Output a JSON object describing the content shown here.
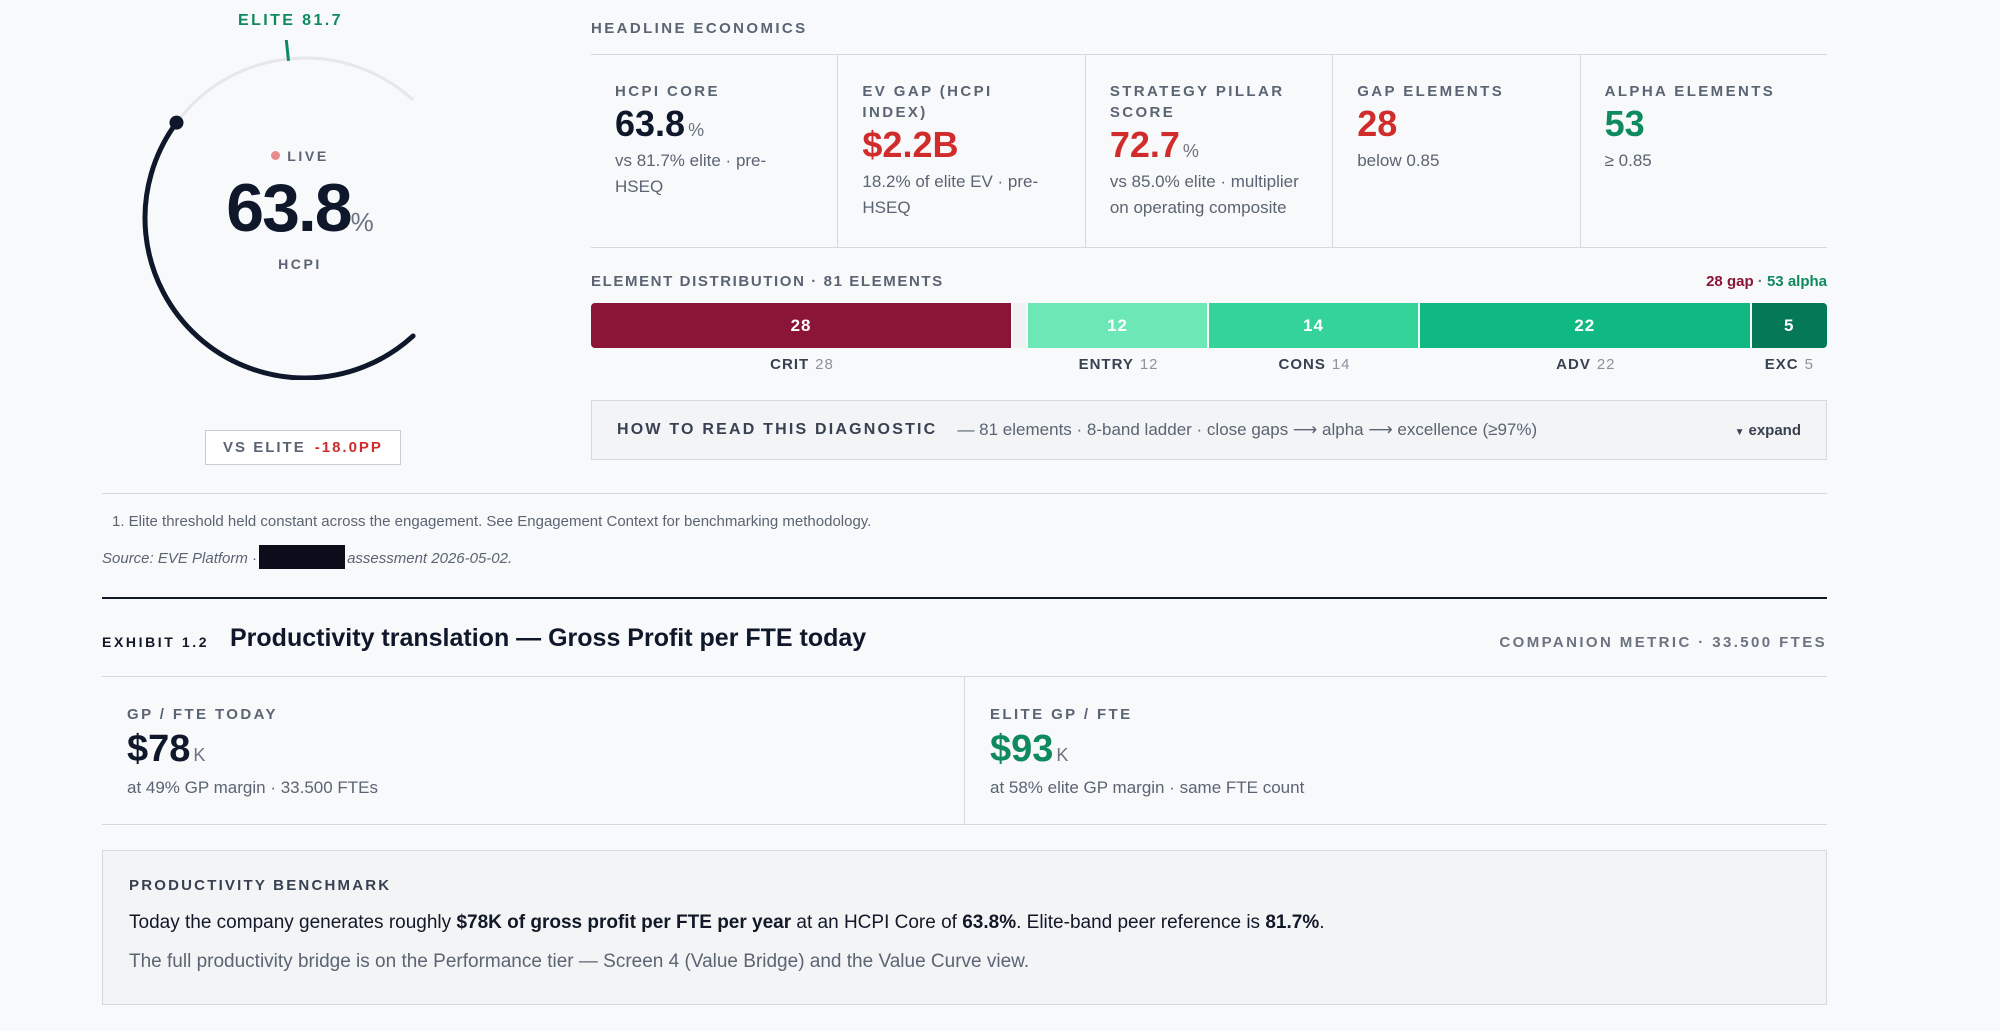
{
  "gauge": {
    "elite_label": "ELITE 81.7",
    "live_label": "LIVE",
    "value": "63.8",
    "unit": "%",
    "metric_label": "HCPI",
    "vs_elite_label": "VS ELITE",
    "vs_elite_value": "-18.0PP",
    "fill_fraction": 0.638,
    "elite_fraction": 0.817,
    "colors": {
      "fill": "#0f172a",
      "track": "#e5e7eb",
      "elite": "#0f8a5f"
    }
  },
  "headline": {
    "title": "HEADLINE ECONOMICS",
    "cells": [
      {
        "label": "HCPI CORE",
        "value": "63.8",
        "unit": "%",
        "sub": "vs 81.7% elite · pre-HSEQ",
        "tone": "dark"
      },
      {
        "label": "EV GAP (HCPI INDEX)",
        "value": "$2.2B",
        "unit": "",
        "sub": "18.2% of elite EV · pre-HSEQ",
        "tone": "red"
      },
      {
        "label": "STRATEGY PILLAR SCORE",
        "value": "72.7",
        "unit": "%",
        "sub": "vs 85.0% elite · multiplier on operating composite",
        "tone": "red"
      },
      {
        "label": "GAP ELEMENTS",
        "value": "28",
        "unit": "",
        "sub": "below 0.85",
        "tone": "red"
      },
      {
        "label": "ALPHA ELEMENTS",
        "value": "53",
        "unit": "",
        "sub": "≥ 0.85",
        "tone": "green"
      }
    ]
  },
  "distribution": {
    "title": "ELEMENT DISTRIBUTION · 81 ELEMENTS",
    "gap_summary": "28 gap",
    "separator": " · ",
    "alpha_summary": "53 alpha",
    "segments": [
      {
        "key": "crit",
        "label": "CRIT",
        "count": 28,
        "color": "#8a1536"
      },
      {
        "key": "gapfill",
        "label": "",
        "count": 1,
        "color": "#f0f1f3"
      },
      {
        "key": "entry",
        "label": "ENTRY",
        "count": 12,
        "color": "#6ee7b7"
      },
      {
        "key": "cons",
        "label": "CONS",
        "count": 14,
        "color": "#34d399"
      },
      {
        "key": "adv",
        "label": "ADV",
        "count": 22,
        "color": "#10b981"
      },
      {
        "key": "exc",
        "label": "EXC",
        "count": 5,
        "color": "#047857"
      }
    ]
  },
  "how_to": {
    "title": "HOW TO READ THIS DIAGNOSTIC",
    "desc": "— 81 elements · 8-band ladder · close gaps ⟶ alpha ⟶ excellence (≥97%)",
    "expand_label": "expand"
  },
  "footnote": "1. Elite threshold held constant across the engagement. See Engagement Context for benchmarking methodology.",
  "source": {
    "prefix": "Source: EVE Platform ·",
    "suffix": "assessment 2026-05-02."
  },
  "exhibit": {
    "tag": "EXHIBIT 1.2",
    "title": "Productivity translation — Gross Profit per FTE today",
    "companion": "COMPANION METRIC · 33.500 FTES"
  },
  "productivity": [
    {
      "label": "GP / FTE TODAY",
      "value": "$78",
      "unit": "K",
      "sub": "at 49% GP margin · 33.500 FTEs",
      "tone": "dark"
    },
    {
      "label": "ELITE GP / FTE",
      "value": "$93",
      "unit": "K",
      "sub": "at 58% elite GP margin · same FTE count",
      "tone": "green"
    }
  ],
  "benchmark": {
    "title": "PRODUCTIVITY BENCHMARK",
    "p1_a": "Today the company generates roughly ",
    "p1_b": "$78K of gross profit per FTE per year",
    "p1_c": " at an HCPI Core of ",
    "p1_d": "63.8%",
    "p1_e": ". Elite-band peer reference is ",
    "p1_f": "81.7%",
    "p1_g": ".",
    "p2": "The full productivity bridge is on the Performance tier — Screen 4 (Value Bridge) and the Value Curve view."
  }
}
